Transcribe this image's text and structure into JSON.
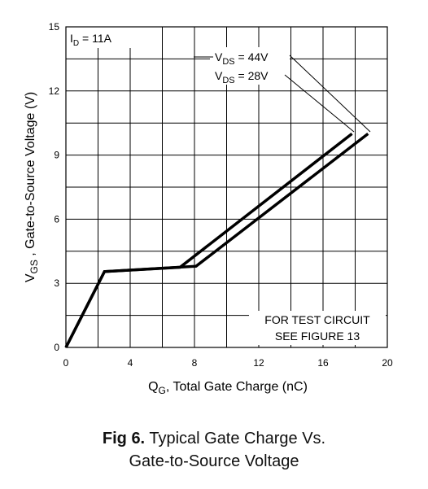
{
  "chart_data": {
    "type": "line",
    "xlabel_main": "Q",
    "xlabel_sub": "G",
    "xlabel_rest": ", Total Gate Charge (nC)",
    "ylabel_main": "V",
    "ylabel_sub": "GS",
    "ylabel_rest": " , Gate-to-Source Voltage (V)",
    "xlim": [
      0,
      20
    ],
    "ylim": [
      0,
      15
    ],
    "x_ticks": [
      "0",
      "4",
      "8",
      "12",
      "16",
      "20"
    ],
    "y_ticks": [
      "0",
      "3",
      "6",
      "9",
      "12",
      "15"
    ],
    "grid": true,
    "series": [
      {
        "name": "V DS = 44V",
        "x": [
          0,
          2.4,
          8.1,
          18.8
        ],
        "y": [
          0,
          3.55,
          3.8,
          10
        ]
      },
      {
        "name": "V DS = 28V",
        "x": [
          0,
          2.4,
          7.1,
          17.8
        ],
        "y": [
          0,
          3.55,
          3.75,
          10
        ]
      }
    ],
    "annotations": {
      "id_main": "I",
      "id_sub": "D",
      "id_rest": " = 11A",
      "vds_main": "V",
      "vds_sub": "DS",
      "vds1_rest": " = 44V",
      "vds2_rest": " = 28V",
      "test_line1": "FOR TEST CIRCUIT",
      "test_line2": "SEE FIGURE 13"
    }
  },
  "caption": {
    "fig_label": "Fig 6.",
    "line1": "Typical Gate Charge Vs.",
    "line2": "Gate-to-Source Voltage"
  }
}
